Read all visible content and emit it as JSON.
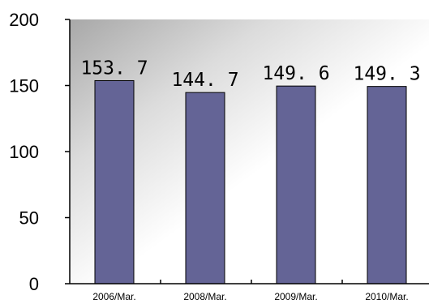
{
  "chart_data": {
    "type": "bar",
    "categories": [
      "2006/Mar.",
      "2008/Mar.",
      "2009/Mar.",
      "2010/Mar."
    ],
    "values": [
      153.7,
      144.7,
      149.6,
      149.3
    ],
    "value_labels": [
      "153. 7",
      "144. 7",
      "149. 6",
      "149. 3"
    ],
    "ylim": [
      0,
      200
    ],
    "yticks": [
      0,
      50,
      100,
      150,
      200
    ],
    "ytick_labels": [
      "0",
      "50",
      "100",
      "150",
      "200"
    ],
    "title": "",
    "xlabel": "",
    "ylabel": "",
    "grid": false,
    "legend": "none",
    "colors": {
      "bar_fill": "#646496",
      "bar_stroke": "#000000",
      "plot_bg_dark": "#a8a8a8",
      "plot_bg_light": "#ffffff",
      "axis": "#000000"
    }
  }
}
